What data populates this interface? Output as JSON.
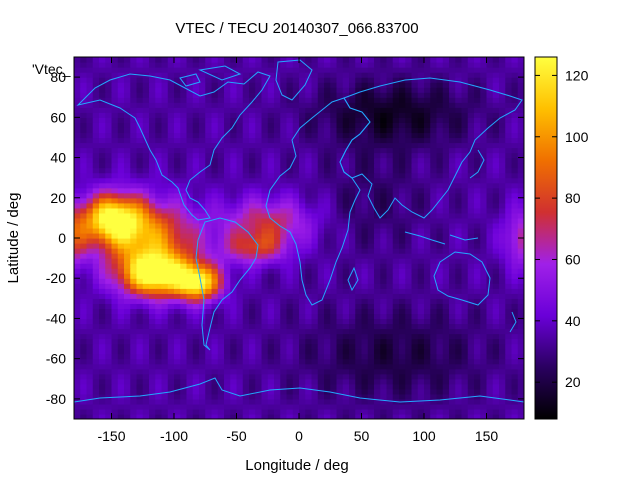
{
  "chart_data": {
    "type": "heatmap",
    "title": "VTEC / TECU 20140307_066.83700",
    "xlabel": "Longitude / deg",
    "ylabel": "Latitude / deg",
    "legend_label": "'Vtec_",
    "xlim": [
      -180,
      180
    ],
    "ylim": [
      -90,
      90
    ],
    "x_ticks": [
      -150,
      -100,
      -50,
      0,
      50,
      100,
      150
    ],
    "y_ticks": [
      -80,
      -60,
      -40,
      -20,
      0,
      20,
      40,
      60,
      80
    ],
    "colorbar": {
      "range": [
        8,
        126
      ],
      "ticks": [
        20,
        40,
        60,
        80,
        100,
        120
      ],
      "colors": [
        "#000000",
        "#2a0060",
        "#6a00d8",
        "#a020e8",
        "#d03030",
        "#f07000",
        "#ffc000",
        "#ffff40"
      ],
      "position": "right"
    },
    "features": [
      {
        "type": "peak",
        "lon": -150,
        "lat": 10,
        "value": 120
      },
      {
        "type": "peak",
        "lon": -115,
        "lat": -20,
        "value": 126
      },
      {
        "type": "peak",
        "lon": -80,
        "lat": -22,
        "value": 120
      },
      {
        "type": "band",
        "lon": -20,
        "lat": 10,
        "value": 68
      },
      {
        "type": "band",
        "lon": -30,
        "lat": -5,
        "value": 70
      },
      {
        "type": "band",
        "lon": 180,
        "lat": 0,
        "value": 72
      },
      {
        "type": "minimum",
        "lon": 75,
        "lat": 62,
        "value": 10
      },
      {
        "type": "minimum",
        "lon": 75,
        "lat": -60,
        "value": 14
      }
    ]
  }
}
